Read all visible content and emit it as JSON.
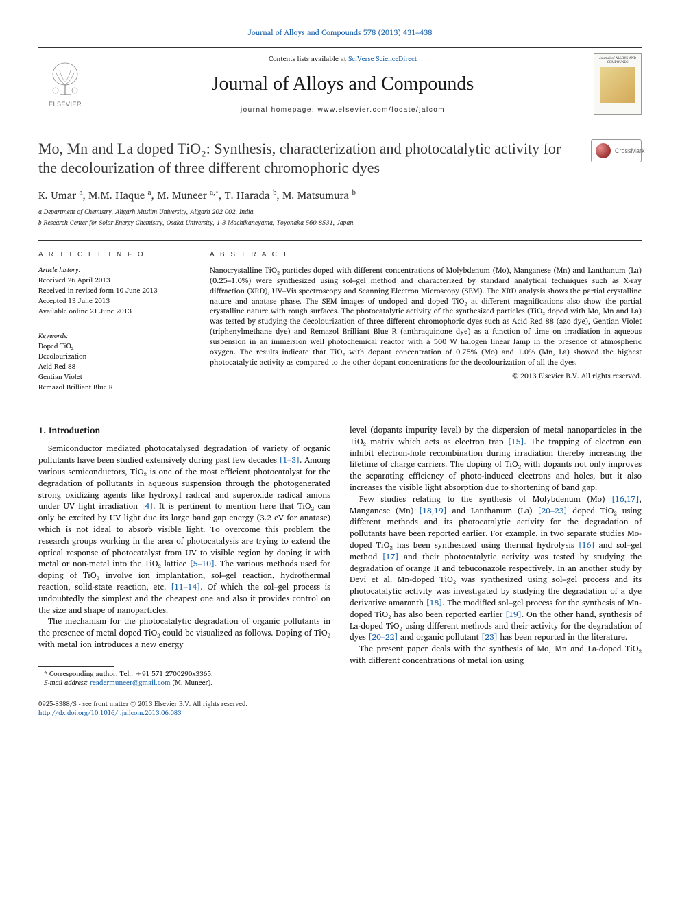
{
  "top_citation": "Journal of Alloys and Compounds 578 (2013) 431–438",
  "masthead": {
    "contents_prefix": "Contents lists available at ",
    "contents_link": "SciVerse ScienceDirect",
    "journal": "Journal of Alloys and Compounds",
    "homepage_prefix": "journal homepage: ",
    "homepage": "www.elsevier.com/locate/jalcom",
    "elsevier_label": "ELSEVIER",
    "cover_title": "Journal of ALLOYS AND COMPOUNDS"
  },
  "crossmark_label": "CrossMark",
  "title": "Mo, Mn and La doped TiO₂: Synthesis, characterization and photocatalytic activity for the decolourization of three different chromophoric dyes",
  "authors_html": "K. Umar <sup>a</sup>, M.M. Haque <sup>a</sup>, M. Muneer <sup>a,*</sup>, T. Harada <sup>b</sup>, M. Matsumura <sup>b</sup>",
  "affiliations": [
    "a Department of Chemistry, Aligarh Muslim University, Aligarh 202 002, India",
    "b Research Center for Solar Energy Chemistry, Osaka University, 1-3 Machikaneyama, Toyonaka 560-8531, Japan"
  ],
  "article_info": {
    "heading": "A R T I C L E   I N F O",
    "history_label": "Article history:",
    "history": [
      "Received 26 April 2013",
      "Received in revised form 10 June 2013",
      "Accepted 13 June 2013",
      "Available online 21 June 2013"
    ],
    "keywords_label": "Keywords:",
    "keywords": [
      "Doped TiO₂",
      "Decolourization",
      "Acid Red 88",
      "Gentian Violet",
      "Remazol Brilliant Blue R"
    ]
  },
  "abstract": {
    "heading": "A B S T R A C T",
    "text": "Nanocrystalline TiO₂ particles doped with different concentrations of Molybdenum (Mo), Manganese (Mn) and Lanthanum (La) (0.25–1.0%) were synthesized using sol–gel method and characterized by standard analytical techniques such as X-ray diffraction (XRD), UV–Vis spectroscopy and Scanning Electron Microscopy (SEM). The XRD analysis shows the partial crystalline nature and anatase phase. The SEM images of undoped and doped TiO₂ at different magnifications also show the partial crystalline nature with rough surfaces. The photocatalytic activity of the synthesized particles (TiO₂ doped with Mo, Mn and La) was tested by studying the decolourization of three different chromophoric dyes such as Acid Red 88 (azo dye), Gentian Violet (triphenylmethane dye) and Remazol Brilliant Blue R (anthraquinone dye) as a function of time on irradiation in aqueous suspension in an immersion well photochemical reactor with a 500 W halogen linear lamp in the presence of atmospheric oxygen. The results indicate that TiO₂ with dopant concentration of 0.75% (Mo) and 1.0% (Mn, La) showed the highest photocatalytic activity as compared to the other dopant concentrations for the decolourization of all the dyes.",
    "copyright": "© 2013 Elsevier B.V. All rights reserved."
  },
  "body": {
    "heading": "1. Introduction",
    "p1": "Semiconductor mediated photocatalysed degradation of variety of organic pollutants have been studied extensively during past few decades [1–3]. Among various semiconductors, TiO₂ is one of the most efficient photocatalyst for the degradation of pollutants in aqueous suspension through the photogenerated strong oxidizing agents like hydroxyl radical and superoxide radical anions under UV light irradiation [4]. It is pertinent to mention here that TiO₂ can only be excited by UV light due its large band gap energy (3.2 eV for anatase) which is not ideal to absorb visible light. To overcome this problem the research groups working in the area of photocatalysis are trying to extend the optical response of photocatalyst from UV to visible region by doping it with metal or non-metal into the TiO₂ lattice [5–10]. The various methods used for doping of TiO₂ involve ion implantation, sol–gel reaction, hydrothermal reaction, solid-state reaction, etc. [11–14]. Of which the sol–gel process is undoubtedly the simplest and the cheapest one and also it provides control on the size and shape of nanoparticles.",
    "p2": "The mechanism for the photocatalytic degradation of organic pollutants in the presence of metal doped TiO₂ could be visualized as follows. Doping of TiO₂ with metal ion introduces a new energy level (dopants impurity level) by the dispersion of metal nanoparticles in the TiO₂ matrix which acts as electron trap [15]. The trapping of electron can inhibit electron-hole recombination during irradiation thereby increasing the lifetime of charge carriers. The doping of TiO₂ with dopants not only improves the separating efficiency of photo-induced electrons and holes, but it also increases the visible light absorption due to shortening of band gap.",
    "p3": "Few studies relating to the synthesis of Molybdenum (Mo) [16,17], Manganese (Mn) [18,19] and Lanthanum (La) [20–23] doped TiO₂ using different methods and its photocatalytic activity for the degradation of pollutants have been reported earlier. For example, in two separate studies Mo-doped TiO₂ has been synthesized using thermal hydrolysis [16] and sol–gel method [17] and their photocatalytic activity was tested by studying the degradation of orange II and tebuconazole respectively. In an another study by Devi et al. Mn-doped TiO₂ was synthesized using sol–gel process and its photocatalytic activity was investigated by studying the degradation of a dye derivative amaranth [18]. The modified sol–gel process for the synthesis of Mn-doped TiO₂ has also been reported earlier [19]. On the other hand, synthesis of La-doped TiO₂ using different methods and their activity for the degradation of dyes [20–22] and organic pollutant [23] has been reported in the literature.",
    "p4": "The present paper deals with the synthesis of Mo, Mn and La-doped TiO₂ with different concentrations of metal ion using"
  },
  "footnotes": {
    "corresponding": "* Corresponding author. Tel.: +91 571 2700290x3365.",
    "email_label": "E-mail address: ",
    "email": "readermuneer@gmail.com",
    "email_suffix": " (M. Muneer)."
  },
  "bottom": {
    "line1": "0925-8388/$ - see front matter © 2013 Elsevier B.V. All rights reserved.",
    "doi": "http://dx.doi.org/10.1016/j.jallcom.2013.06.083"
  },
  "refs": {
    "r1_3": "[1–3]",
    "r4": "[4]",
    "r5_10": "[5–10]",
    "r11_14": "[11–14]",
    "r15": "[15]",
    "r16_17": "[16,17]",
    "r18_19": "[18,19]",
    "r20_23": "[20–23]",
    "r16": "[16]",
    "r17": "[17]",
    "r18": "[18]",
    "r19": "[19]",
    "r20_22": "[20–22]",
    "r23": "[23]"
  }
}
